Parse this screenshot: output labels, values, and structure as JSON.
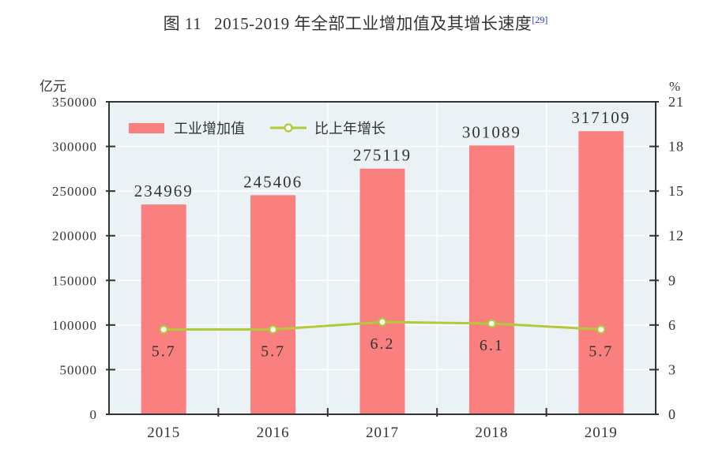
{
  "title": {
    "prefix": "图 11",
    "main": "2015-2019 年全部工业增加值及其增长速度",
    "footnote": "[29]",
    "footnote_color": "#2233cc"
  },
  "chart_data": {
    "type": "bar",
    "combo": "bar+line dual-axis",
    "categories": [
      "2015",
      "2016",
      "2017",
      "2018",
      "2019"
    ],
    "series": [
      {
        "name": "工业增加值",
        "type": "bar",
        "axis": "left",
        "color": "#fa8080",
        "values": [
          234969,
          245406,
          275119,
          301089,
          317109
        ],
        "value_labels": [
          "234969",
          "245406",
          "275119",
          "301089",
          "317109"
        ]
      },
      {
        "name": "比上年增长",
        "type": "line",
        "axis": "right",
        "color": "#b2c93a",
        "marker": "open-circle",
        "marker_fill": "#ffffff",
        "values": [
          5.7,
          5.7,
          6.2,
          6.1,
          5.7
        ],
        "value_labels": [
          "5.7",
          "5.7",
          "6.2",
          "6.1",
          "5.7"
        ]
      }
    ],
    "left_axis": {
      "unit": "亿元",
      "min": 0,
      "max": 350000,
      "step": 50000,
      "tick_labels": [
        "0",
        "50000",
        "100000",
        "150000",
        "200000",
        "250000",
        "300000",
        "350000"
      ]
    },
    "right_axis": {
      "unit": "%",
      "min": 0,
      "max": 21,
      "step": 3,
      "tick_labels": [
        "0",
        "3",
        "6",
        "9",
        "12",
        "15",
        "18",
        "21"
      ]
    },
    "legend": {
      "position": "top-left-inside",
      "items": [
        "工业增加值",
        "比上年增长"
      ]
    },
    "grid": {
      "horizontal": true,
      "vertical": true,
      "color": "#ffffff"
    },
    "plot_background": "#eaf2f6",
    "axis_color": "#333333",
    "text_color": "#333333"
  }
}
